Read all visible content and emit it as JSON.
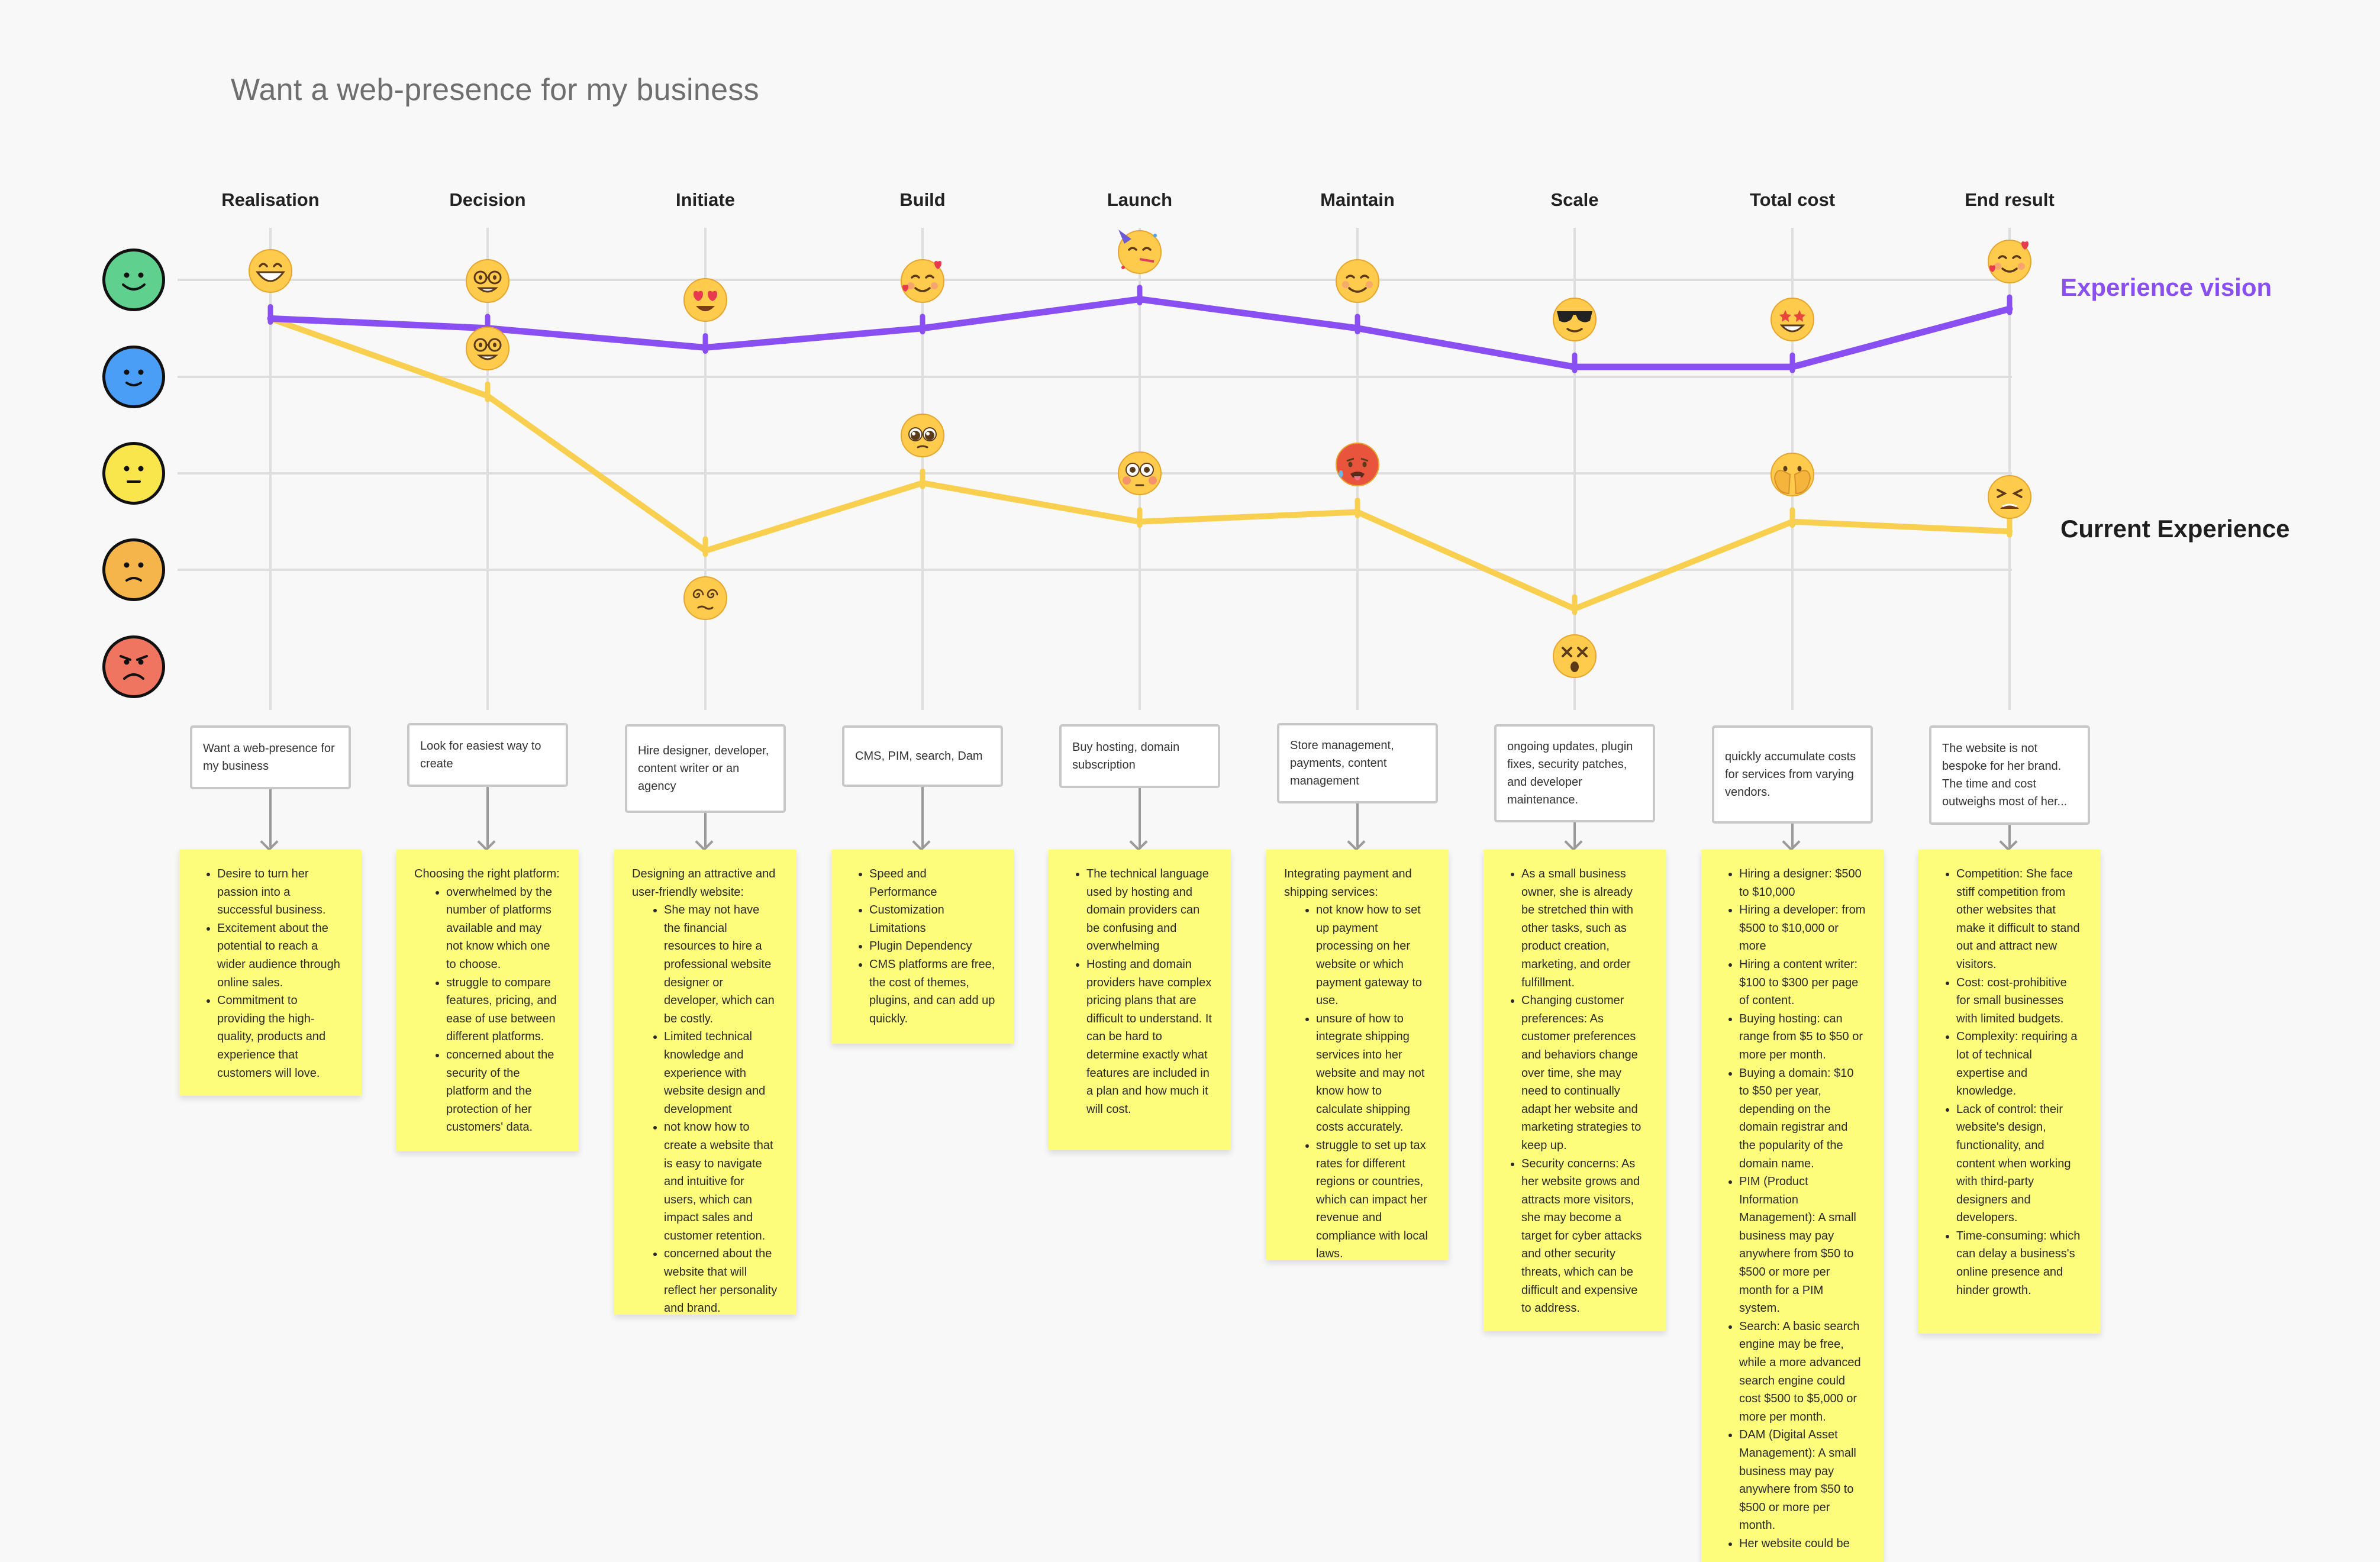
{
  "title": "Want a web-presence for my business",
  "stages": [
    "Realisation",
    "Decision",
    "Initiate",
    "Build",
    "Launch",
    "Maintain",
    "Scale",
    "Total cost",
    "End result"
  ],
  "legend": {
    "vision": "Experience vision",
    "current": "Current Experience"
  },
  "colors": {
    "vision": "#8a4ff2",
    "current": "#f8cf4f",
    "grid": "#dedede"
  },
  "rating_scale": [
    {
      "level": 5,
      "icon": "very-happy-face-icon",
      "color": "#5fd08e"
    },
    {
      "level": 4,
      "icon": "happy-face-icon",
      "color": "#4a9ef6"
    },
    {
      "level": 3,
      "icon": "neutral-face-icon",
      "color": "#f9e64d"
    },
    {
      "level": 2,
      "icon": "unhappy-face-icon",
      "color": "#f6b54b"
    },
    {
      "level": 1,
      "icon": "angry-face-icon",
      "color": "#ef7560"
    }
  ],
  "chart_data": {
    "type": "line",
    "title": "Want a web-presence for my business",
    "categories": [
      "Realisation",
      "Decision",
      "Initiate",
      "Build",
      "Launch",
      "Maintain",
      "Scale",
      "Total cost",
      "End result"
    ],
    "ylim": [
      1,
      5
    ],
    "series": [
      {
        "name": "Experience vision",
        "values": [
          4.6,
          4.5,
          4.3,
          4.5,
          4.8,
          4.5,
          4.1,
          4.1,
          4.7
        ],
        "emojis": [
          "grinning-face-icon",
          "nerd-face-icon",
          "heart-eyes-face-icon",
          "smiling-face-with-hearts-icon",
          "partying-face-icon",
          "smiling-face-icon",
          "sunglasses-face-icon",
          "star-struck-face-icon",
          "smiling-face-with-hearts-icon"
        ]
      },
      {
        "name": "Current Experience",
        "values": [
          4.6,
          3.8,
          2.2,
          2.9,
          2.5,
          2.6,
          1.6,
          2.5,
          2.4
        ],
        "emojis": [
          "grinning-face-icon",
          "nerd-face-icon",
          "dizzy-eyes-face-icon",
          "pleading-face-icon",
          "flushed-face-icon",
          "hot-sweating-face-icon",
          "dizzy-x-eyes-face-icon",
          "peeking-hands-face-icon",
          "tired-face-icon"
        ]
      }
    ]
  },
  "touchpoints": [
    "Want a web-presence for my business",
    "Look for easiest way to create",
    "Hire designer, developer, content writer or an agency",
    "CMS, PIM, search, Dam",
    "Buy hosting, domain subscription",
    "Store management, payments, content management",
    "ongoing updates, plugin fixes, security patches, and developer maintenance.",
    "quickly accumulate costs for services from varying vendors.",
    "The website is not bespoke for her brand. The time and cost outweighs most of her..."
  ],
  "notes": [
    {
      "intro": "",
      "items": [
        "Desire to turn her passion into a successful business.",
        "Excitement about the potential to reach a wider audience through online sales.",
        "Commitment to providing the high-quality, products and experience that customers will love."
      ]
    },
    {
      "intro": "Choosing the right platform:",
      "items": [
        "overwhelmed by the number of platforms available and may not know which one to choose.",
        "struggle to compare features, pricing, and ease of use between different platforms.",
        "concerned about the security of the platform and the protection of her customers' data."
      ]
    },
    {
      "intro": "Designing an attractive and user-friendly website:",
      "items": [
        "She may not have the financial resources to hire a professional website designer or developer, which can be costly.",
        "Limited technical knowledge and experience with website design and development",
        "not know how to create a website that is easy to navigate and intuitive for users, which can impact sales and customer retention.",
        "concerned about the website that will reflect her personality and brand."
      ]
    },
    {
      "intro": "",
      "items": [
        "Speed and Performance",
        "Customization Limitations",
        "Plugin Dependency",
        "CMS platforms are free, the cost of themes, plugins, and can add up quickly."
      ]
    },
    {
      "intro": "",
      "items": [
        "The technical language used by hosting and domain providers can be confusing and overwhelming",
        "Hosting and domain providers have complex pricing plans that are difficult to understand. It can be hard to determine exactly what features are included in a plan and how much it will cost."
      ]
    },
    {
      "intro": "Integrating payment and shipping services:",
      "items": [
        "not know how to set up payment processing on her website or which payment gateway to use.",
        "unsure of how to integrate shipping services into her website and may not know how to calculate shipping costs accurately.",
        "struggle to set up tax rates for different regions or countries, which can impact her revenue and compliance with local laws."
      ]
    },
    {
      "intro": "",
      "items": [
        "As a small business owner, she is already be stretched thin with other tasks, such as product creation, marketing, and order fulfillment.",
        "Changing customer preferences: As customer preferences and behaviors change over time, she may need to continually adapt her website and marketing strategies to keep up.",
        "Security concerns: As her website grows and attracts more visitors, she may become a target for cyber attacks and other security threats, which can be difficult and expensive to address."
      ]
    },
    {
      "intro": "",
      "items": [
        "Hiring a designer: $500 to $10,000",
        "Hiring a developer: from $500 to $10,000 or more",
        "Hiring a content writer: $100 to $300 per page of content.",
        "Buying hosting: can range from $5 to $50 or more per month.",
        "Buying a domain: $10 to $50 per year, depending on the domain registrar and the popularity of the domain name.",
        "PIM (Product Information Management): A small business may pay anywhere from $50 to $500 or more per month for a PIM system.",
        "Search: A basic search engine may be free, while a more advanced search engine could cost $500 to $5,000 or more per month.",
        "DAM (Digital Asset Management): A small business may pay anywhere from $50 to $500 or more per month.",
        "Her website could be"
      ]
    },
    {
      "intro": "",
      "items": [
        "Competition: She face stiff competition from other websites that make it difficult to stand out and attract new visitors.",
        "Cost: cost-prohibitive for small businesses with limited budgets.",
        "Complexity: requiring a lot of technical expertise and knowledge.",
        "Lack of control: their website's design, functionality, and content when working with third-party designers and developers.",
        "Time-consuming: which can delay a business's online presence and hinder growth."
      ]
    }
  ]
}
